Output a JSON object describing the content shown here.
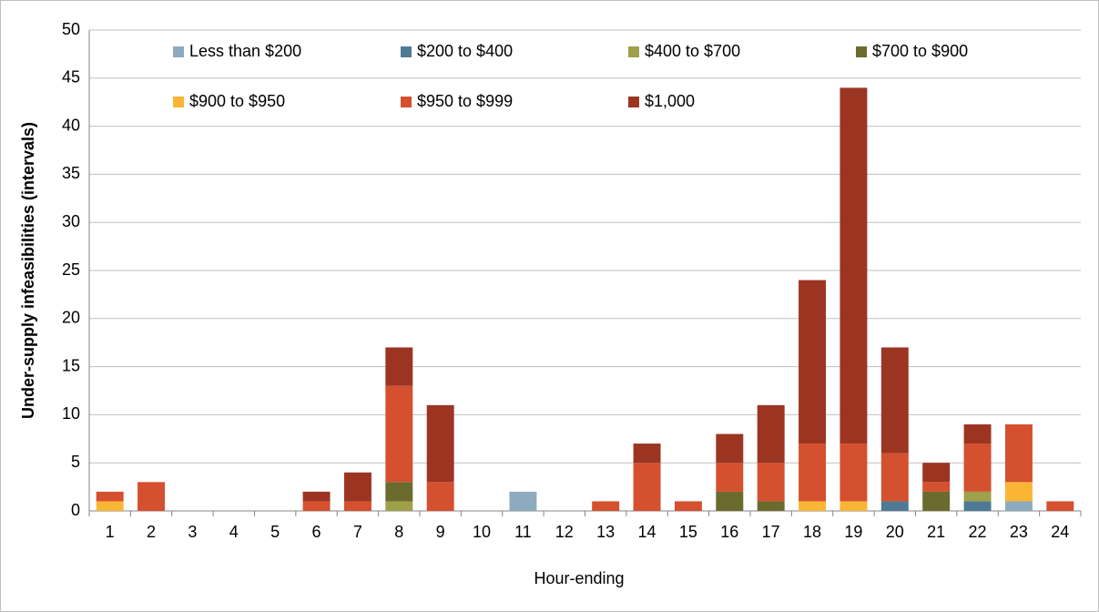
{
  "chart_data": {
    "type": "bar",
    "stacked": true,
    "y_label": "Under-supply infeasibilities (intervals)",
    "x_label": "Hour-ending",
    "categories": [
      "1",
      "2",
      "3",
      "4",
      "5",
      "6",
      "7",
      "8",
      "9",
      "10",
      "11",
      "12",
      "13",
      "14",
      "15",
      "16",
      "17",
      "18",
      "19",
      "20",
      "21",
      "22",
      "23",
      "24"
    ],
    "series": [
      {
        "name": "Less than $200",
        "color": "#8eaabf",
        "values": [
          0,
          0,
          0,
          0,
          0,
          0,
          0,
          0,
          0,
          0,
          2,
          0,
          0,
          0,
          0,
          0,
          0,
          0,
          0,
          0,
          0,
          0,
          1,
          0
        ]
      },
      {
        "name": "$200 to $400",
        "color": "#4f7a96",
        "values": [
          0,
          0,
          0,
          0,
          0,
          0,
          0,
          0,
          0,
          0,
          0,
          0,
          0,
          0,
          0,
          0,
          0,
          0,
          0,
          1,
          0,
          1,
          0,
          0
        ]
      },
      {
        "name": "$400 to $700",
        "color": "#9ea04a",
        "values": [
          0,
          0,
          0,
          0,
          0,
          0,
          0,
          1,
          0,
          0,
          0,
          0,
          0,
          0,
          0,
          0,
          0,
          0,
          0,
          0,
          0,
          1,
          0,
          0
        ]
      },
      {
        "name": "$700 to $900",
        "color": "#6b6b2e",
        "values": [
          0,
          0,
          0,
          0,
          0,
          0,
          0,
          2,
          0,
          0,
          0,
          0,
          0,
          0,
          0,
          2,
          1,
          0,
          0,
          0,
          2,
          0,
          0,
          0
        ]
      },
      {
        "name": "$900 to $950",
        "color": "#fbb535",
        "values": [
          1,
          0,
          0,
          0,
          0,
          0,
          0,
          0,
          0,
          0,
          0,
          0,
          0,
          0,
          0,
          0,
          0,
          1,
          1,
          0,
          0,
          0,
          2,
          0
        ]
      },
      {
        "name": "$950 to $999",
        "color": "#d4502e",
        "values": [
          1,
          3,
          0,
          0,
          0,
          1,
          1,
          10,
          3,
          0,
          0,
          0,
          1,
          5,
          1,
          3,
          4,
          6,
          6,
          5,
          1,
          5,
          6,
          1
        ]
      },
      {
        "name": "$1,000",
        "color": "#9b3522",
        "values": [
          0,
          0,
          0,
          0,
          0,
          1,
          3,
          4,
          8,
          0,
          0,
          0,
          0,
          2,
          0,
          3,
          6,
          17,
          37,
          11,
          2,
          2,
          0,
          0
        ]
      }
    ],
    "ylim": [
      0,
      50
    ],
    "yticks": [
      0,
      5,
      10,
      15,
      20,
      25,
      30,
      35,
      40,
      45,
      50
    ],
    "grid": true,
    "legend": "top"
  }
}
